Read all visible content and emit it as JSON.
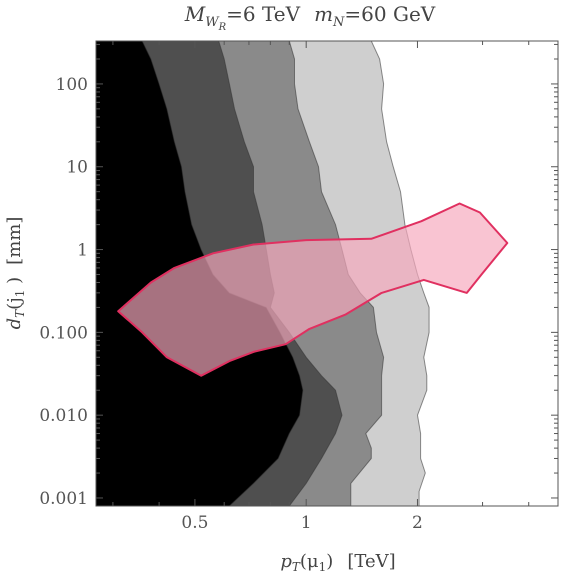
{
  "chart_data": {
    "type": "area",
    "title": {
      "m_wr_symbol": "M",
      "m_wr_sub": "W",
      "m_wr_subsub": "R",
      "m_wr_value": "=6 TeV",
      "m_n_symbol": "m",
      "m_n_sub": "N",
      "m_n_value": "=60 GeV"
    },
    "xlabel": {
      "symbol": "p",
      "sub": "T",
      "arg": "(μ",
      "arg_sub": "1",
      "arg_close": ")",
      "unit": "[TeV]"
    },
    "ylabel": {
      "symbol": "d",
      "sub": "T",
      "arg": "(j",
      "arg_sub": "1",
      "arg_close": " )",
      "unit": "[mm]"
    },
    "xscale": "log",
    "yscale": "log",
    "xlim": [
      0.27,
      4.8
    ],
    "ylim": [
      0.0008,
      330
    ],
    "x_ticks": [
      {
        "value": 0.5,
        "label": "0.5"
      },
      {
        "value": 1,
        "label": "1"
      },
      {
        "value": 2,
        "label": "2"
      }
    ],
    "y_ticks": [
      {
        "value": 0.001,
        "label": "0.001"
      },
      {
        "value": 0.01,
        "label": "0.010"
      },
      {
        "value": 0.1,
        "label": "0.100"
      },
      {
        "value": 1,
        "label": "1"
      },
      {
        "value": 10,
        "label": "10"
      },
      {
        "value": 100,
        "label": "100"
      }
    ],
    "background_regions": [
      {
        "level": "outer",
        "fill": "#cfcfcf",
        "boundary_x": [
          1.5,
          1.58,
          1.62,
          1.6,
          1.65,
          1.72,
          1.8,
          1.85,
          1.92,
          2.0,
          2.08,
          2.15,
          2.15,
          2.08,
          2.12,
          2.12,
          2.0,
          2.04,
          2.04,
          2.04,
          2.1,
          2.02,
          2.02
        ],
        "boundary_y": [
          330,
          200,
          100,
          50,
          20,
          10,
          5,
          2,
          1,
          0.5,
          0.3,
          0.2,
          0.1,
          0.05,
          0.03,
          0.02,
          0.01,
          0.006,
          0.004,
          0.003,
          0.002,
          0.0012,
          0.0008
        ]
      },
      {
        "level": "third",
        "fill": "#8a8a8a",
        "boundary_x": [
          0.9,
          0.93,
          0.93,
          0.95,
          1.02,
          1.08,
          1.1,
          1.2,
          1.25,
          1.3,
          1.4,
          1.52,
          1.55,
          1.62,
          1.6,
          1.6,
          1.6,
          1.45,
          1.5,
          1.5,
          1.32,
          1.32
        ],
        "boundary_y": [
          330,
          200,
          100,
          50,
          20,
          10,
          5,
          2,
          1,
          0.5,
          0.3,
          0.2,
          0.1,
          0.05,
          0.03,
          0.02,
          0.01,
          0.006,
          0.004,
          0.003,
          0.0015,
          0.0008
        ]
      },
      {
        "level": "second",
        "fill": "#4f4f4f",
        "boundary_x": [
          0.58,
          0.6,
          0.62,
          0.64,
          0.68,
          0.72,
          0.72,
          0.76,
          0.78,
          0.8,
          0.82,
          0.8,
          0.9,
          1.0,
          1.1,
          1.2,
          1.25,
          1.2,
          1.1,
          1.0,
          0.9
        ],
        "boundary_y": [
          330,
          200,
          100,
          50,
          20,
          10,
          5,
          2,
          1,
          0.5,
          0.3,
          0.2,
          0.1,
          0.05,
          0.03,
          0.02,
          0.01,
          0.006,
          0.003,
          0.0015,
          0.0008
        ]
      },
      {
        "level": "inner",
        "fill": "#000000",
        "boundary_x": [
          0.36,
          0.38,
          0.4,
          0.42,
          0.44,
          0.46,
          0.47,
          0.49,
          0.52,
          0.56,
          0.62,
          0.78,
          0.85,
          0.92,
          0.96,
          0.98,
          0.96,
          0.9,
          0.84,
          0.72,
          0.62
        ],
        "boundary_y": [
          330,
          200,
          100,
          50,
          20,
          10,
          5,
          2,
          1,
          0.5,
          0.3,
          0.2,
          0.1,
          0.05,
          0.03,
          0.02,
          0.01,
          0.006,
          0.003,
          0.0015,
          0.0008
        ]
      }
    ],
    "signal_region": {
      "fill": "#f6a8bd",
      "fill_opacity": 0.68,
      "stroke": "#e03060",
      "outline": [
        [
          0.31,
          0.18
        ],
        [
          0.38,
          0.4
        ],
        [
          0.44,
          0.6
        ],
        [
          0.56,
          0.9
        ],
        [
          0.72,
          1.15
        ],
        [
          1.0,
          1.3
        ],
        [
          1.5,
          1.35
        ],
        [
          2.05,
          2.2
        ],
        [
          2.6,
          3.6
        ],
        [
          2.95,
          2.8
        ],
        [
          3.5,
          1.2
        ],
        [
          2.98,
          0.5
        ],
        [
          2.72,
          0.3
        ],
        [
          2.08,
          0.43
        ],
        [
          1.6,
          0.3
        ],
        [
          1.28,
          0.165
        ],
        [
          1.02,
          0.11
        ],
        [
          0.88,
          0.072
        ],
        [
          0.72,
          0.058
        ],
        [
          0.62,
          0.045
        ],
        [
          0.52,
          0.03
        ],
        [
          0.42,
          0.05
        ],
        [
          0.36,
          0.1
        ],
        [
          0.31,
          0.18
        ]
      ]
    },
    "grid": false,
    "legend": "none"
  }
}
